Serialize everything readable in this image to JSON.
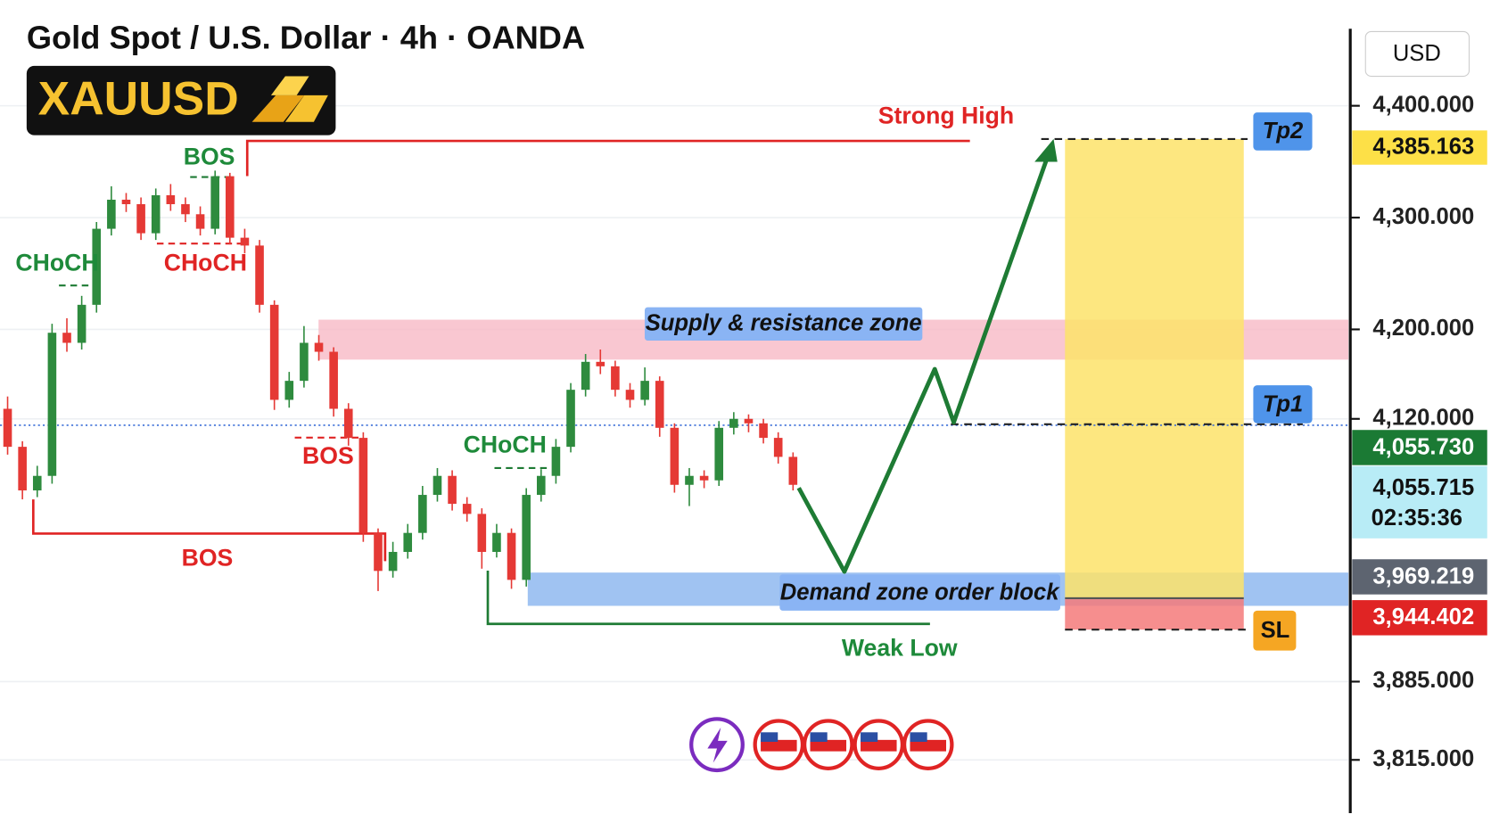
{
  "chart_data": {
    "type": "candlestick",
    "title": "Gold Spot / U.S. Dollar · 4h · OANDA",
    "symbol": "XAUUSD",
    "currency": "USD",
    "up_color": "#2e8b3e",
    "down_color": "#e53935",
    "grid": true,
    "ylim": [
      3767.4,
      4494.4
    ],
    "yticks": [
      {
        "value": 4400,
        "label": "4,400.000"
      },
      {
        "value": 4300,
        "label": "4,300.000"
      },
      {
        "value": 4200,
        "label": "4,200.000"
      },
      {
        "value": 4120,
        "label": "4,120.000"
      },
      {
        "value": 3885,
        "label": "3,885.000"
      },
      {
        "value": 3815,
        "label": "3,815.000"
      }
    ],
    "open": [
      4129,
      4095,
      4056,
      4069,
      4197,
      4188,
      4222,
      4290,
      4316,
      4312,
      4286,
      4320,
      4312,
      4303,
      4290,
      4337,
      4282,
      4275,
      4222,
      4137,
      4154,
      4188,
      4180,
      4129,
      4103,
      4018,
      3984,
      4001,
      4018,
      4052,
      4069,
      4044,
      4035,
      4001,
      4018,
      3976,
      4052,
      4069,
      4095,
      4146,
      4171,
      4167,
      4146,
      4137,
      4154,
      4112,
      4061,
      4069,
      4065,
      4112,
      4120,
      4116,
      4103,
      4086
    ],
    "high": [
      4140,
      4100,
      4078,
      4205,
      4210,
      4230,
      4296,
      4328,
      4322,
      4318,
      4326,
      4330,
      4318,
      4310,
      4342,
      4340,
      4290,
      4280,
      4226,
      4162,
      4203,
      4195,
      4184,
      4134,
      4108,
      4022,
      4010,
      4026,
      4060,
      4076,
      4074,
      4050,
      4040,
      4026,
      4022,
      4058,
      4075,
      4102,
      4152,
      4178,
      4182,
      4172,
      4152,
      4166,
      4158,
      4116,
      4076,
      4074,
      4118,
      4126,
      4124,
      4120,
      4108,
      4090
    ],
    "low": [
      4088,
      4048,
      4050,
      4062,
      4180,
      4182,
      4215,
      4284,
      4305,
      4280,
      4280,
      4306,
      4296,
      4284,
      4285,
      4276,
      4268,
      4215,
      4128,
      4130,
      4148,
      4172,
      4122,
      4096,
      4010,
      3966,
      3978,
      3995,
      4012,
      4046,
      4038,
      4028,
      3986,
      3996,
      3968,
      3970,
      4046,
      4062,
      4090,
      4140,
      4160,
      4140,
      4130,
      4132,
      4104,
      4054,
      4042,
      4058,
      4060,
      4106,
      4108,
      4098,
      4080,
      4056
    ],
    "close": [
      4095,
      4056,
      4069,
      4197,
      4188,
      4222,
      4290,
      4316,
      4312,
      4286,
      4320,
      4312,
      4303,
      4290,
      4337,
      4282,
      4275,
      4222,
      4137,
      4154,
      4188,
      4180,
      4129,
      4103,
      4018,
      3984,
      4001,
      4018,
      4052,
      4069,
      4044,
      4035,
      4001,
      4018,
      3976,
      4052,
      4069,
      4095,
      4146,
      4171,
      4167,
      4146,
      4137,
      4154,
      4112,
      4061,
      4069,
      4065,
      4112,
      4120,
      4116,
      4103,
      4086,
      4061
    ],
    "annotations": [
      "Strong High",
      "BOS",
      "CHoCH",
      "CHoCH",
      "BOS",
      "CHoCH",
      "BOS",
      "Supply & resistance zone",
      "Demand zone order block",
      "Weak Low",
      "Tp2",
      "Tp1",
      "SL"
    ],
    "price_labels": [
      "4,385.163",
      "4,055.730",
      "4,055.715",
      "02:35:36",
      "3,969.219",
      "3,944.402"
    ]
  }
}
